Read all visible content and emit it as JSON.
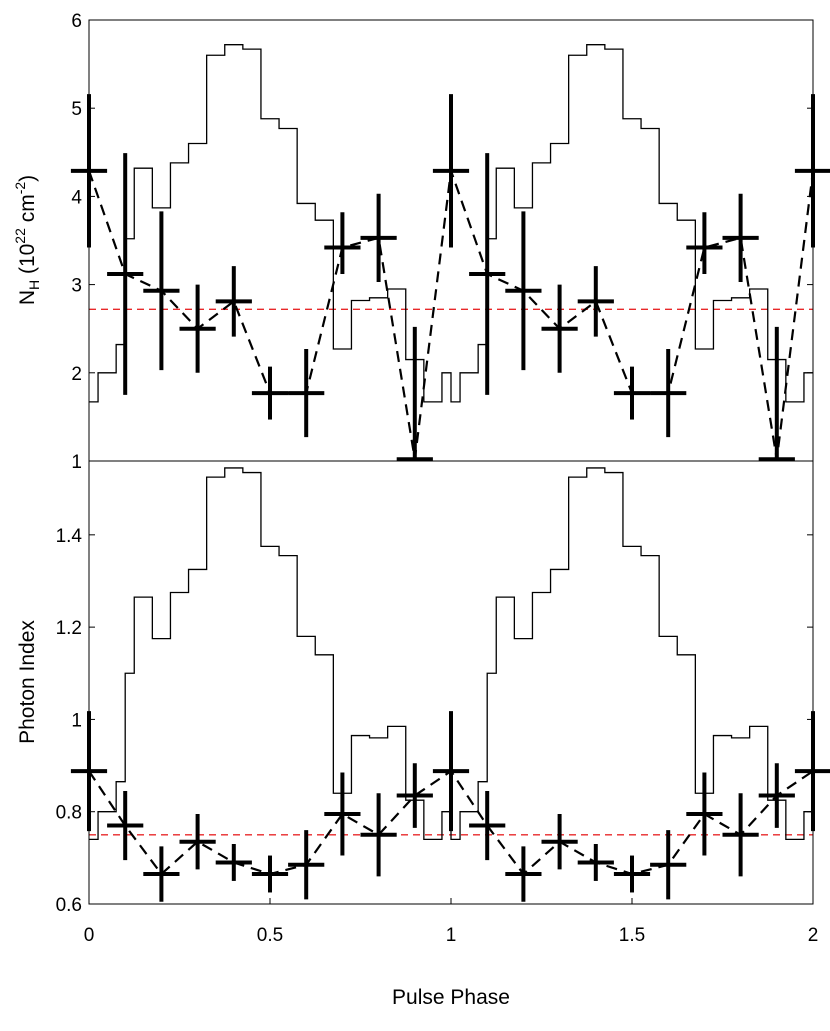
{
  "chart_data": [
    {
      "type": "line",
      "panel": "top",
      "title": "",
      "xlabel": "",
      "ylabel": "N",
      "ylabel_sub": "H",
      "ylabel_units_open": " (10",
      "ylabel_sup1": "22",
      "ylabel_mid": " cm",
      "ylabel_sup2": "-2",
      "ylabel_close": ")",
      "xlim": [
        0,
        2
      ],
      "ylim": [
        1,
        6
      ],
      "yticks": [
        "1",
        "2",
        "3",
        "4",
        "5",
        "6"
      ],
      "reference_line": {
        "y": 2.72,
        "color": "#e8282a",
        "style": "dashed"
      },
      "series": [
        {
          "name": "Pulse profile",
          "kind": "step",
          "color": "#000000",
          "bin_edges": [
            0,
            0.025,
            0.05,
            0.075,
            0.1,
            0.125,
            0.15,
            0.175,
            0.2,
            0.225,
            0.25,
            0.275,
            0.3,
            0.325,
            0.35,
            0.375,
            0.4,
            0.425,
            0.45,
            0.475,
            0.5,
            0.525,
            0.55,
            0.575,
            0.6,
            0.625,
            0.65,
            0.675,
            0.7,
            0.725,
            0.75,
            0.775,
            0.8,
            0.825,
            0.85,
            0.875,
            0.9,
            0.925,
            0.95,
            0.975,
            1.0,
            1.025,
            1.05,
            1.075,
            1.1,
            1.125,
            1.15,
            1.175,
            1.2,
            1.225,
            1.25,
            1.275,
            1.3,
            1.325,
            1.35,
            1.375,
            1.4,
            1.425,
            1.45,
            1.475,
            1.5,
            1.525,
            1.55,
            1.575,
            1.6,
            1.625,
            1.65,
            1.675,
            1.7,
            1.725,
            1.75,
            1.775,
            1.8,
            1.825,
            1.85,
            1.875,
            1.9,
            1.925,
            1.95,
            1.975,
            2.0
          ],
          "values": [
            1.67,
            2.0,
            2.0,
            2.32,
            3.52,
            4.32,
            4.32,
            3.87,
            3.87,
            4.38,
            4.38,
            4.6,
            4.6,
            5.6,
            5.6,
            5.72,
            5.72,
            5.67,
            5.67,
            4.88,
            4.88,
            4.77,
            4.77,
            3.92,
            3.92,
            3.73,
            3.73,
            2.27,
            2.27,
            2.82,
            2.82,
            2.85,
            2.85,
            2.95,
            2.95,
            2.15,
            2.15,
            1.67,
            1.67,
            2.0,
            1.67,
            2.0,
            2.0,
            2.32,
            3.52,
            4.32,
            4.32,
            3.87,
            3.87,
            4.38,
            4.38,
            4.6,
            4.6,
            5.6,
            5.6,
            5.72,
            5.72,
            5.67,
            5.67,
            4.88,
            4.88,
            4.77,
            4.77,
            3.92,
            3.92,
            3.73,
            3.73,
            2.27,
            2.27,
            2.82,
            2.82,
            2.85,
            2.85,
            2.95,
            2.95,
            2.15,
            2.15,
            1.67,
            1.67,
            2.0
          ]
        },
        {
          "name": "N_H fit",
          "kind": "errorbar",
          "color": "#000000",
          "connect": "dashed",
          "x": [
            0.0,
            0.1,
            0.2,
            0.3,
            0.4,
            0.5,
            0.6,
            0.7,
            0.8,
            0.9,
            1.0,
            1.1,
            1.2,
            1.3,
            1.4,
            1.5,
            1.6,
            1.7,
            1.8,
            1.9,
            2.0
          ],
          "y": [
            4.29,
            3.12,
            2.93,
            2.5,
            2.81,
            1.77,
            1.77,
            3.42,
            3.53,
            1.02,
            4.29,
            3.12,
            2.93,
            2.5,
            2.81,
            1.77,
            1.77,
            3.42,
            3.53,
            1.02,
            4.29
          ],
          "yerr_low": [
            0.87,
            1.37,
            0.9,
            0.5,
            0.4,
            0.3,
            0.5,
            0.3,
            0.5,
            0.0,
            0.87,
            1.37,
            0.9,
            0.5,
            0.4,
            0.3,
            0.5,
            0.3,
            0.5,
            0.0,
            0.87
          ],
          "yerr_high": [
            0.87,
            1.37,
            0.9,
            0.5,
            0.4,
            0.3,
            0.5,
            0.4,
            0.5,
            1.5,
            0.87,
            1.37,
            0.9,
            0.5,
            0.4,
            0.3,
            0.5,
            0.4,
            0.5,
            1.5,
            0.87
          ],
          "xerr": 0.05
        }
      ]
    },
    {
      "type": "line",
      "panel": "bottom",
      "title": "",
      "xlabel": "Pulse Phase",
      "ylabel": "Photon Index",
      "xlim": [
        0,
        2
      ],
      "ylim": [
        0.6,
        1.56
      ],
      "yticks": [
        "0.6",
        "0.8",
        "1",
        "1.2",
        "1.4"
      ],
      "xticks": [
        "0",
        "0.5",
        "1",
        "1.5",
        "2"
      ],
      "reference_line": {
        "y": 0.75,
        "color": "#e8282a",
        "style": "dashed"
      },
      "series": [
        {
          "name": "Pulse profile",
          "kind": "step",
          "color": "#000000",
          "bin_edges": [
            0,
            0.025,
            0.05,
            0.075,
            0.1,
            0.125,
            0.15,
            0.175,
            0.2,
            0.225,
            0.25,
            0.275,
            0.3,
            0.325,
            0.35,
            0.375,
            0.4,
            0.425,
            0.45,
            0.475,
            0.5,
            0.525,
            0.55,
            0.575,
            0.6,
            0.625,
            0.65,
            0.675,
            0.7,
            0.725,
            0.75,
            0.775,
            0.8,
            0.825,
            0.85,
            0.875,
            0.9,
            0.925,
            0.95,
            0.975,
            1.0,
            1.025,
            1.05,
            1.075,
            1.1,
            1.125,
            1.15,
            1.175,
            1.2,
            1.225,
            1.25,
            1.275,
            1.3,
            1.325,
            1.35,
            1.375,
            1.4,
            1.425,
            1.45,
            1.475,
            1.5,
            1.525,
            1.55,
            1.575,
            1.6,
            1.625,
            1.65,
            1.675,
            1.7,
            1.725,
            1.75,
            1.775,
            1.8,
            1.825,
            1.85,
            1.875,
            1.9,
            1.925,
            1.95,
            1.975,
            2.0
          ],
          "values": [
            0.74,
            0.8,
            0.8,
            0.865,
            1.1,
            1.265,
            1.265,
            1.175,
            1.175,
            1.275,
            1.275,
            1.325,
            1.325,
            1.525,
            1.525,
            1.545,
            1.545,
            1.535,
            1.535,
            1.375,
            1.375,
            1.355,
            1.355,
            1.18,
            1.18,
            1.14,
            1.14,
            0.84,
            0.84,
            0.965,
            0.965,
            0.96,
            0.96,
            0.985,
            0.985,
            0.825,
            0.825,
            0.74,
            0.74,
            0.8,
            0.74,
            0.8,
            0.8,
            0.865,
            1.1,
            1.265,
            1.265,
            1.175,
            1.175,
            1.275,
            1.275,
            1.325,
            1.325,
            1.525,
            1.525,
            1.545,
            1.545,
            1.535,
            1.535,
            1.375,
            1.375,
            1.355,
            1.355,
            1.18,
            1.18,
            1.14,
            1.14,
            0.84,
            0.84,
            0.965,
            0.965,
            0.96,
            0.96,
            0.985,
            0.985,
            0.825,
            0.825,
            0.74,
            0.74,
            0.8
          ]
        },
        {
          "name": "Photon index fit",
          "kind": "errorbar",
          "color": "#000000",
          "connect": "dashed",
          "x": [
            0.0,
            0.1,
            0.2,
            0.3,
            0.4,
            0.5,
            0.6,
            0.7,
            0.8,
            0.9,
            1.0,
            1.1,
            1.2,
            1.3,
            1.4,
            1.5,
            1.6,
            1.7,
            1.8,
            1.9,
            2.0
          ],
          "y": [
            0.888,
            0.77,
            0.665,
            0.735,
            0.69,
            0.665,
            0.685,
            0.795,
            0.75,
            0.835,
            0.888,
            0.77,
            0.665,
            0.735,
            0.69,
            0.665,
            0.685,
            0.795,
            0.75,
            0.835,
            0.888
          ],
          "yerr_low": [
            0.13,
            0.075,
            0.06,
            0.06,
            0.04,
            0.04,
            0.075,
            0.09,
            0.09,
            0.07,
            0.13,
            0.075,
            0.06,
            0.06,
            0.04,
            0.04,
            0.075,
            0.09,
            0.09,
            0.07,
            0.13
          ],
          "yerr_high": [
            0.13,
            0.075,
            0.06,
            0.06,
            0.04,
            0.04,
            0.075,
            0.09,
            0.09,
            0.07,
            0.13,
            0.075,
            0.06,
            0.06,
            0.04,
            0.04,
            0.075,
            0.09,
            0.09,
            0.07,
            0.13
          ],
          "xerr": 0.05
        }
      ]
    }
  ]
}
